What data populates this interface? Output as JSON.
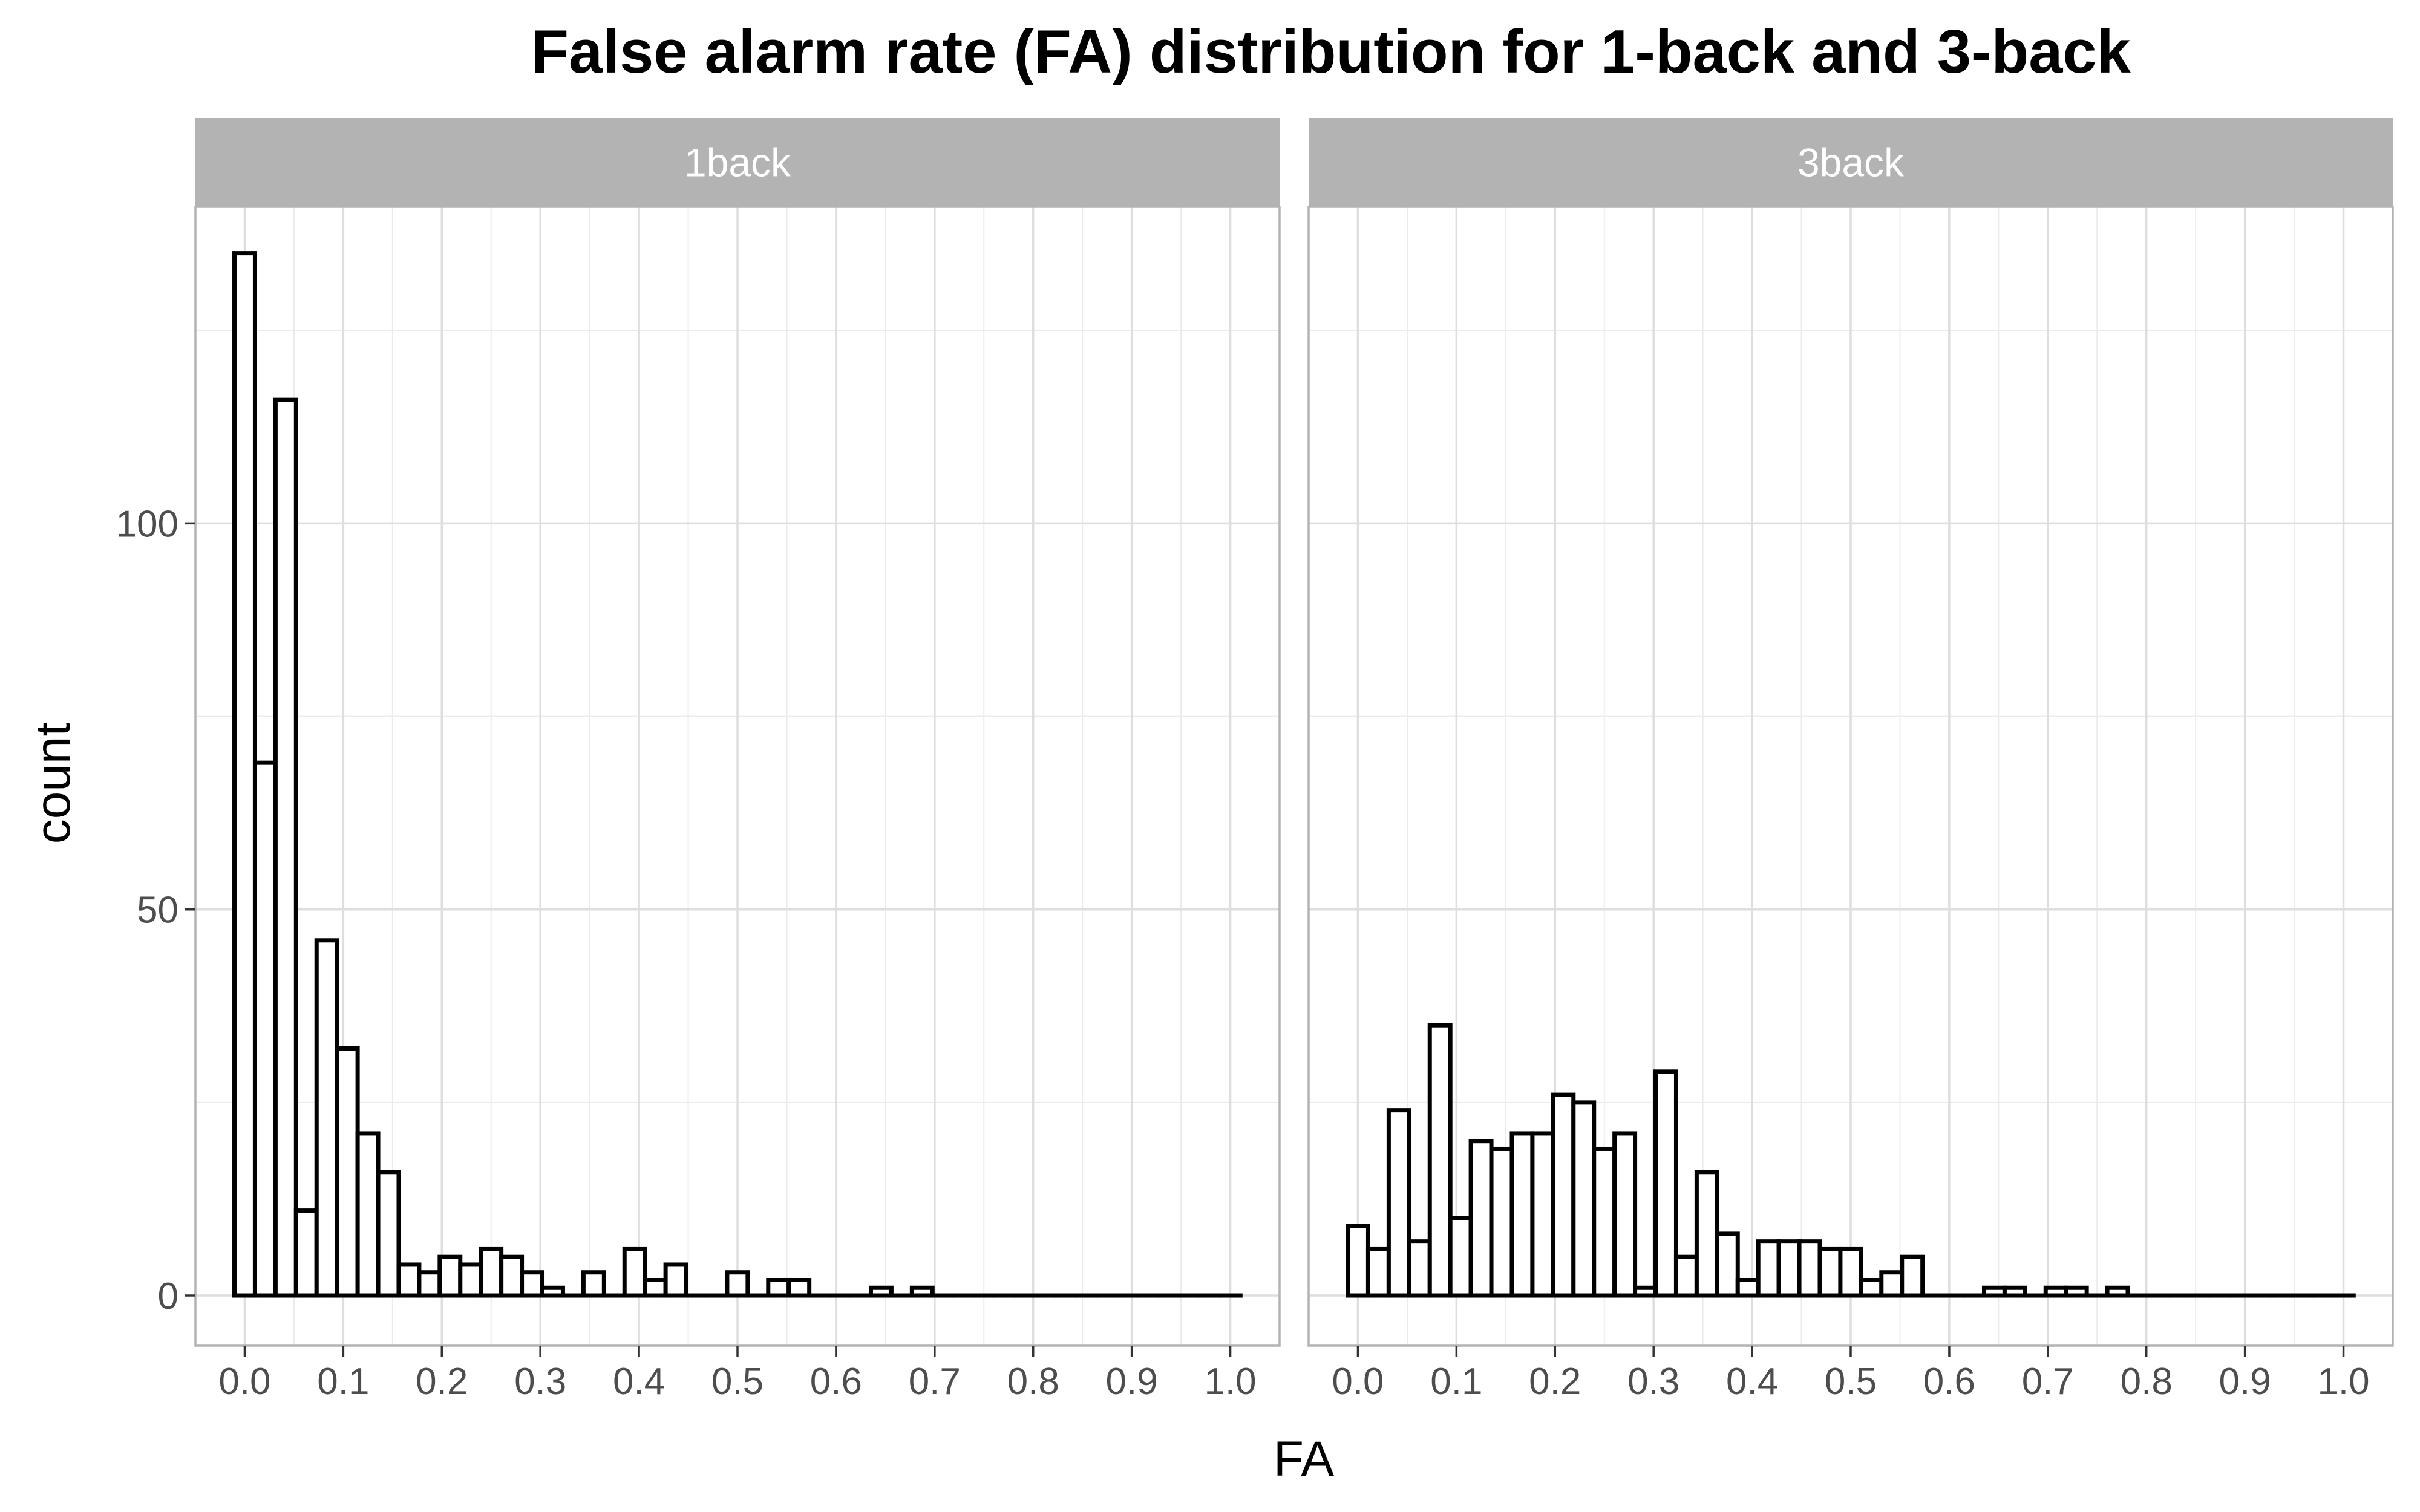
{
  "chart_data": {
    "type": "bar",
    "title": "False alarm rate (FA) distribution for 1-back and 3-back",
    "xlabel": "FA",
    "ylabel": "count",
    "grid": true,
    "xlim": [
      -0.05,
      1.05
    ],
    "ylim": [
      -6.5,
      141
    ],
    "x_ticks": [
      "0.0",
      "0.1",
      "0.2",
      "0.3",
      "0.4",
      "0.5",
      "0.6",
      "0.7",
      "0.8",
      "0.9",
      "1.0"
    ],
    "y_ticks": [
      "0",
      "50",
      "100"
    ],
    "bin_width": 0.02083,
    "bin_start": -0.0104,
    "panels": [
      {
        "name": "1back",
        "counts": [
          135,
          69,
          116,
          11,
          46,
          32,
          21,
          16,
          4,
          3,
          5,
          4,
          6,
          5,
          3,
          1,
          0,
          3,
          0,
          6,
          2,
          4,
          0,
          0,
          3,
          0,
          2,
          2,
          0,
          0,
          0,
          1,
          0,
          1,
          0,
          0,
          0,
          0,
          0,
          0,
          0,
          0,
          0,
          0,
          0,
          0,
          0,
          0,
          0
        ]
      },
      {
        "name": "3back",
        "counts": [
          9,
          6,
          24,
          7,
          35,
          10,
          20,
          19,
          21,
          21,
          26,
          25,
          19,
          21,
          1,
          29,
          5,
          16,
          8,
          2,
          7,
          7,
          7,
          6,
          6,
          2,
          3,
          5,
          0,
          0,
          0,
          1,
          1,
          0,
          1,
          1,
          0,
          1,
          0,
          0,
          0,
          0,
          0,
          0,
          0,
          0,
          0,
          0,
          0
        ]
      }
    ]
  }
}
